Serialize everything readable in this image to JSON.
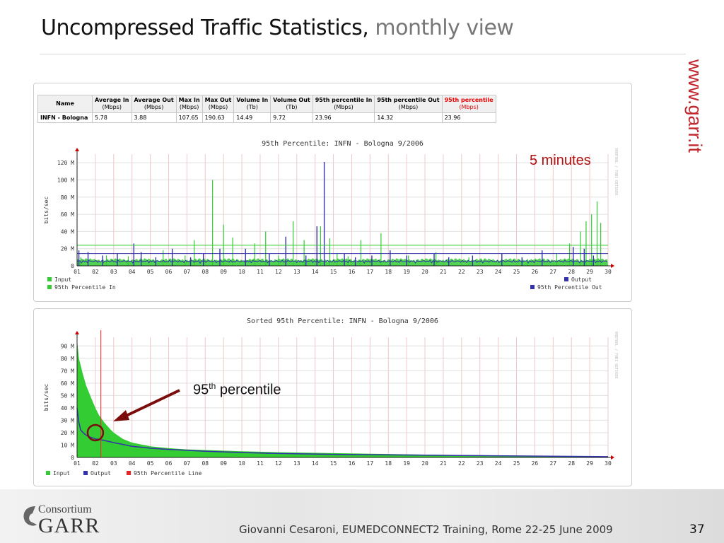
{
  "slide": {
    "title_main": "Uncompressed Traffic Statistics,",
    "title_sub": "monthly view",
    "brand_url": "www.garr.it",
    "footer_text": "Giovanni Cesaroni, EUMEDCONNECT2 Training, Rome 22-25 June 2009",
    "page_number": "37",
    "logo_small": "Consortium",
    "logo_big": "GARR",
    "colors": {
      "brand_red": "#c0262d",
      "annotation_red": "#b01010",
      "arrow": "#7a0c0c"
    }
  },
  "table": {
    "headers": [
      {
        "label": "Name",
        "unit": ""
      },
      {
        "label": "Average In",
        "unit": "(Mbps)"
      },
      {
        "label": "Average Out",
        "unit": "(Mbps)"
      },
      {
        "label": "Max In",
        "unit": "(Mbps)"
      },
      {
        "label": "Max Out",
        "unit": "(Mbps)"
      },
      {
        "label": "Volume In",
        "unit": "(Tb)"
      },
      {
        "label": "Volume Out",
        "unit": "(Tb)"
      },
      {
        "label": "95th percentile In",
        "unit": "(Mbps)"
      },
      {
        "label": "95th percentile Out",
        "unit": "(Mbps)"
      },
      {
        "label": "95th percentile",
        "unit": "(Mbps)"
      }
    ],
    "row": [
      "INFN - Bologna",
      "5.78",
      "3.88",
      "107.65",
      "190.63",
      "14.49",
      "9.72",
      "23.96",
      "14.32",
      "23.96"
    ]
  },
  "annotations": {
    "five_minutes": "5 minutes",
    "percentile_prefix": "95",
    "percentile_sup": "th",
    "percentile_suffix": " percentile"
  },
  "chart_data": [
    {
      "type": "line",
      "title": "95th Percentile: INFN - Bologna 9/2006",
      "ylabel": "bits/sec",
      "side_label": "RRDTOOL / TOBI OETIKER",
      "y_ticks": [
        "0",
        "20 M",
        "40 M",
        "60 M",
        "80 M",
        "100 M",
        "120 M"
      ],
      "ylim": [
        0,
        130
      ],
      "x_ticks": [
        "01",
        "02",
        "03",
        "04",
        "05",
        "06",
        "07",
        "08",
        "09",
        "10",
        "11",
        "12",
        "13",
        "14",
        "15",
        "16",
        "17",
        "18",
        "19",
        "20",
        "21",
        "22",
        "23",
        "24",
        "25",
        "26",
        "27",
        "28",
        "29",
        "30"
      ],
      "legend": {
        "input": "Input",
        "p95_in": "95th Percentile In",
        "output": "Output",
        "p95_out": "95th Percentile Out"
      },
      "series": [
        {
          "name": "Input",
          "color": "#33cc33",
          "baseline": 4,
          "spikes": [
            [
              1.2,
              10
            ],
            [
              2.6,
              12
            ],
            [
              3.8,
              11
            ],
            [
              5.7,
              18
            ],
            [
              6.9,
              12
            ],
            [
              7.4,
              30
            ],
            [
              8.4,
              100
            ],
            [
              9.0,
              48
            ],
            [
              9.5,
              33
            ],
            [
              10.7,
              26
            ],
            [
              11.3,
              40
            ],
            [
              12.0,
              12
            ],
            [
              12.8,
              52
            ],
            [
              13.4,
              30
            ],
            [
              14.3,
              46
            ],
            [
              14.8,
              32
            ],
            [
              15.2,
              14
            ],
            [
              15.8,
              11
            ],
            [
              16.5,
              30
            ],
            [
              17.6,
              38
            ],
            [
              19.1,
              12
            ],
            [
              20.6,
              16
            ],
            [
              22.4,
              10
            ],
            [
              25.6,
              8
            ],
            [
              27.2,
              14
            ],
            [
              27.9,
              26
            ],
            [
              28.5,
              40
            ],
            [
              28.8,
              52
            ],
            [
              29.1,
              60
            ],
            [
              29.4,
              75
            ],
            [
              29.6,
              50
            ]
          ]
        },
        {
          "name": "Output",
          "color": "#3333aa",
          "baseline": 3,
          "spikes": [
            [
              1.1,
              18
            ],
            [
              1.6,
              16
            ],
            [
              2.4,
              12
            ],
            [
              3.2,
              14
            ],
            [
              4.1,
              26
            ],
            [
              4.5,
              16
            ],
            [
              5.3,
              10
            ],
            [
              6.2,
              20
            ],
            [
              7.2,
              10
            ],
            [
              7.9,
              14
            ],
            [
              8.8,
              20
            ],
            [
              10.2,
              20
            ],
            [
              11.5,
              14
            ],
            [
              12.4,
              34
            ],
            [
              13.5,
              12
            ],
            [
              14.1,
              46
            ],
            [
              14.5,
              121
            ],
            [
              15.6,
              14
            ],
            [
              16.2,
              10
            ],
            [
              17.1,
              12
            ],
            [
              18.1,
              18
            ],
            [
              19.0,
              12
            ],
            [
              20.5,
              14
            ],
            [
              21.3,
              10
            ],
            [
              22.6,
              12
            ],
            [
              24.2,
              14
            ],
            [
              25.3,
              10
            ],
            [
              26.4,
              18
            ],
            [
              28.1,
              22
            ],
            [
              28.7,
              20
            ],
            [
              29.2,
              12
            ]
          ]
        },
        {
          "name": "95th Percentile In",
          "color": "#33cc33",
          "value": 23.96
        },
        {
          "name": "95th Percentile Out",
          "color": "#3333aa",
          "value": 14.32
        }
      ]
    },
    {
      "type": "area",
      "title": "Sorted 95th Percentile: INFN - Bologna 9/2006",
      "ylabel": "bits/sec",
      "side_label": "RRDTOOL / TOBI OETIKER",
      "y_ticks": [
        "0",
        "10 M",
        "20 M",
        "30 M",
        "40 M",
        "50 M",
        "60 M",
        "70 M",
        "80 M",
        "90 M"
      ],
      "ylim": [
        0,
        97
      ],
      "x_ticks": [
        "01",
        "02",
        "03",
        "04",
        "05",
        "06",
        "07",
        "08",
        "09",
        "10",
        "11",
        "12",
        "13",
        "14",
        "15",
        "16",
        "17",
        "18",
        "19",
        "20",
        "21",
        "22",
        "23",
        "24",
        "25",
        "26",
        "27",
        "28",
        "29",
        "30"
      ],
      "legend": {
        "input": "Input",
        "output": "Output",
        "p95_line": "95th Percentile Line"
      },
      "series": [
        {
          "name": "Input",
          "color": "#33cc33",
          "x": [
            1.0,
            1.1,
            1.3,
            1.5,
            1.8,
            2.0,
            2.2,
            2.5,
            2.8,
            3.0,
            3.5,
            4.0,
            5.0,
            6.0,
            7.0,
            8.0,
            10.0,
            12.0,
            15.0,
            18.0,
            20.0,
            22.0,
            25.0,
            28.0,
            30.0
          ],
          "y": [
            95,
            80,
            68,
            58,
            47,
            40,
            34,
            28,
            23,
            20,
            15,
            12,
            9,
            7.5,
            6.5,
            6,
            5,
            4.2,
            3.5,
            2.8,
            2.3,
            2,
            1.5,
            1,
            0.5
          ]
        },
        {
          "name": "Output",
          "color": "#3333aa",
          "x": [
            1.0,
            1.1,
            1.2,
            1.4,
            1.6,
            2.0,
            2.4,
            3.0,
            4.0,
            5.0,
            6.0,
            8.0,
            10.0,
            12.0,
            15.0,
            20.0,
            25.0,
            30.0
          ],
          "y": [
            40,
            28,
            22,
            19,
            17,
            15,
            14,
            12,
            9,
            7.5,
            6.5,
            5,
            4,
            3.2,
            2.5,
            1.8,
            1.2,
            0.6
          ]
        },
        {
          "name": "95th Percentile Line",
          "color": "#ee2222",
          "x_value": 2.3
        }
      ]
    }
  ]
}
